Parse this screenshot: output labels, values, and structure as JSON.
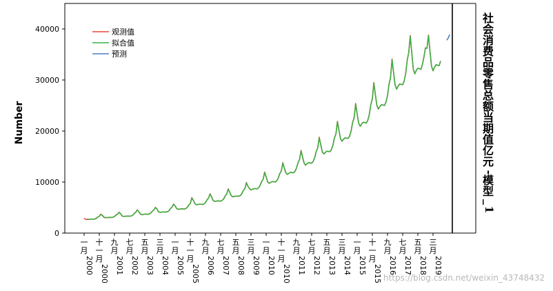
{
  "chart_data": {
    "type": "line",
    "title": "",
    "ylabel": "Number",
    "side_title": "社会消费品零售总额当期值亿元-模型_1",
    "ylim": [
      0,
      45000
    ],
    "yticks": [
      0,
      10000,
      20000,
      30000,
      40000
    ],
    "grid": false,
    "legend_position": "top-left",
    "x_tick_labels": [
      "一月2000",
      "十一月2000",
      "九月2001",
      "七月2002",
      "五月2003",
      "三月2004",
      "一月2005",
      "十一月2005",
      "九月2006",
      "七月2007",
      "五月2008",
      "三月2009",
      "一月2010",
      "十一月2010",
      "九月2011",
      "七月2012",
      "五月2013",
      "三月2014",
      "一月2015",
      "十一月2015",
      "九月2016",
      "七月2017",
      "五月2018",
      "三月2019"
    ],
    "x_range": [
      "2000-01",
      "2020-02"
    ],
    "x_tick_interval_months": 10,
    "series": [
      {
        "name": "观测值",
        "color": "#e8453c",
        "start": "2000-01",
        "values": [
          2900,
          2700,
          2650,
          2700,
          2700,
          2750,
          2700,
          2750,
          2900,
          3150,
          3300,
          3700,
          3500,
          3100,
          3000,
          3050,
          3050,
          3100,
          3050,
          3100,
          3250,
          3550,
          3700,
          4100,
          3800,
          3350,
          3250,
          3300,
          3300,
          3350,
          3300,
          3350,
          3500,
          3850,
          4050,
          4550,
          4200,
          3750,
          3600,
          3650,
          3700,
          3700,
          3700,
          3750,
          3950,
          4300,
          4550,
          5050,
          4700,
          4200,
          4050,
          4100,
          4150,
          4150,
          4100,
          4200,
          4400,
          4850,
          5100,
          5700,
          5300,
          4800,
          4650,
          4700,
          4750,
          4750,
          4700,
          4800,
          5050,
          5500,
          5800,
          6950,
          6400,
          5750,
          5550,
          5600,
          5650,
          5650,
          5600,
          5700,
          6000,
          6500,
          6850,
          7700,
          7100,
          6400,
          6200,
          6250,
          6300,
          6300,
          6250,
          6400,
          6700,
          7300,
          7650,
          8650,
          8000,
          7300,
          7100,
          7200,
          7250,
          7250,
          7200,
          7350,
          7750,
          8350,
          8750,
          9900,
          9150,
          8700,
          8450,
          8600,
          8700,
          8700,
          8650,
          8850,
          9350,
          10100,
          10550,
          11950,
          11000,
          10000,
          9750,
          9950,
          10100,
          10050,
          10000,
          10250,
          10800,
          11700,
          12200,
          13800,
          12700,
          11800,
          11500,
          11700,
          11900,
          11850,
          11800,
          12100,
          12750,
          13800,
          14400,
          16200,
          14900,
          13700,
          13300,
          13600,
          13800,
          13750,
          13700,
          14050,
          14800,
          16000,
          16700,
          18800,
          17300,
          15900,
          15500,
          15800,
          16050,
          16000,
          15950,
          16350,
          17200,
          18650,
          19450,
          21900,
          20100,
          18500,
          18000,
          18400,
          18650,
          18600,
          18550,
          19000,
          20000,
          21700,
          22600,
          25400,
          23300,
          21500,
          20900,
          21400,
          21700,
          21650,
          21550,
          22100,
          23250,
          25200,
          26300,
          29500,
          27100,
          25000,
          24300,
          24800,
          25150,
          25100,
          25000,
          25650,
          26950,
          29200,
          30500,
          34100,
          31400,
          29000,
          28200,
          28800,
          29200,
          29150,
          29050,
          29800,
          31300,
          33900,
          35400,
          38700,
          35300,
          32100,
          31200,
          31900,
          32300,
          32200,
          32100,
          33000,
          34500,
          36300,
          36200,
          38800,
          35600,
          32700,
          31800,
          32500,
          33000,
          32900,
          32800,
          33700
        ]
      },
      {
        "name": "拟合值",
        "color": "#3cb043",
        "start": "2000-03",
        "values": [
          2750,
          2700,
          2720,
          2740,
          2720,
          2760,
          2880,
          3120,
          3300,
          3600,
          3500,
          3150,
          3020,
          3040,
          3060,
          3080,
          3060,
          3110,
          3240,
          3520,
          3700,
          4050,
          3820,
          3380,
          3260,
          3290,
          3320,
          3330,
          3310,
          3360,
          3490,
          3820,
          4050,
          4500,
          4230,
          3780,
          3620,
          3650,
          3700,
          3700,
          3700,
          3760,
          3940,
          4280,
          4550,
          5000,
          4720,
          4230,
          4070,
          4100,
          4160,
          4150,
          4120,
          4210,
          4390,
          4820,
          5100,
          5650,
          5320,
          4830,
          4670,
          4700,
          4760,
          4750,
          4720,
          4810,
          5040,
          5470,
          5800,
          6850,
          6420,
          5780,
          5570,
          5600,
          5660,
          5650,
          5620,
          5710,
          5990,
          6470,
          6850,
          7620,
          7120,
          6430,
          6220,
          6260,
          6310,
          6300,
          6260,
          6410,
          6690,
          7270,
          7650,
          8580,
          8020,
          7330,
          7120,
          7200,
          7260,
          7250,
          7210,
          7360,
          7740,
          8320,
          8750,
          9820,
          9170,
          8720,
          8470,
          8600,
          8710,
          8700,
          8660,
          8860,
          9340,
          10060,
          10550,
          11850,
          11020,
          10040,
          9770,
          9950,
          10110,
          10060,
          10010,
          10260,
          10790,
          11660,
          12200,
          13700,
          12720,
          11830,
          11520,
          11700,
          11910,
          11860,
          11810,
          12110,
          12740,
          13760,
          14400,
          16080,
          14920,
          13740,
          13320,
          13600,
          13810,
          13760,
          13710,
          14060,
          14790,
          15960,
          16700,
          18670,
          17320,
          15940,
          15520,
          15800,
          16060,
          16010,
          15960,
          16360,
          17190,
          18610,
          19450,
          21760,
          20120,
          18540,
          18020,
          18400,
          18660,
          18610,
          18560,
          19010,
          19990,
          21660,
          22600,
          25250,
          23320,
          21540,
          20920,
          21400,
          21710,
          21660,
          21560,
          22110,
          23240,
          25160,
          26300,
          29350,
          27120,
          25040,
          24320,
          24800,
          25160,
          25110,
          25010,
          25660,
          26940,
          29160,
          30500,
          33950,
          31420,
          29040,
          28220,
          28800,
          29210,
          29160,
          29060,
          29810,
          31290,
          33860,
          35400,
          38550,
          35320,
          32140,
          31220,
          31900,
          32310,
          32210,
          32110,
          33010,
          34490,
          36250,
          36200,
          38700,
          35620,
          32740,
          31820,
          32500,
          33010,
          32910,
          32810,
          33710
        ]
      },
      {
        "name": "预测",
        "color": "#4a7fc1",
        "start": "2019-12",
        "values": [
          37800,
          38200,
          38900
        ]
      }
    ]
  },
  "watermark": "https://blog.csdn.net/weixin_43748432"
}
